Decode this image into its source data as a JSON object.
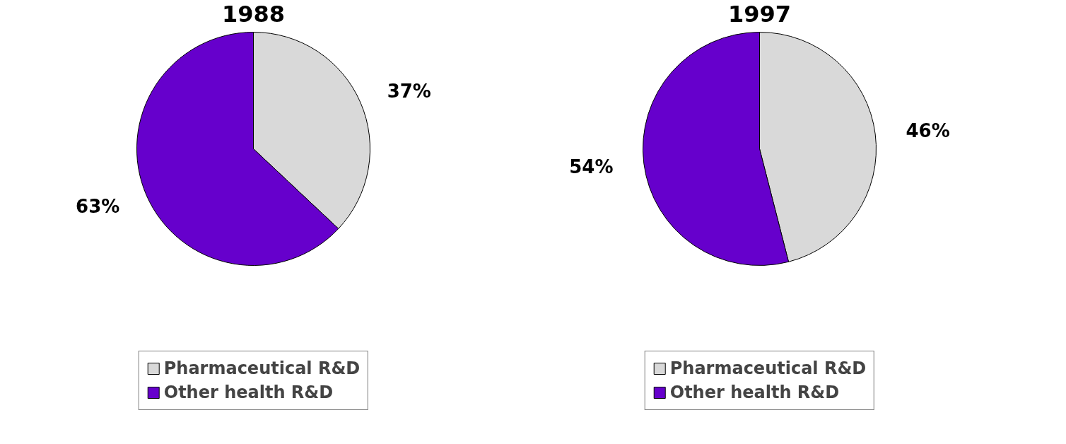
{
  "chart_data": [
    {
      "type": "pie",
      "title": "1988",
      "categories": [
        "Pharmaceutical R&D",
        "Other health R&D"
      ],
      "values": [
        37,
        63
      ],
      "colors": [
        "#d9d9d9",
        "#6600cc"
      ],
      "value_labels": [
        "37%",
        "63%"
      ],
      "legend": "bottom"
    },
    {
      "type": "pie",
      "title": "1997",
      "categories": [
        "Pharmaceutical R&D",
        "Other health R&D"
      ],
      "values": [
        46,
        54
      ],
      "colors": [
        "#d9d9d9",
        "#6600cc"
      ],
      "value_labels": [
        "46%",
        "54%"
      ],
      "legend": "bottom"
    }
  ]
}
